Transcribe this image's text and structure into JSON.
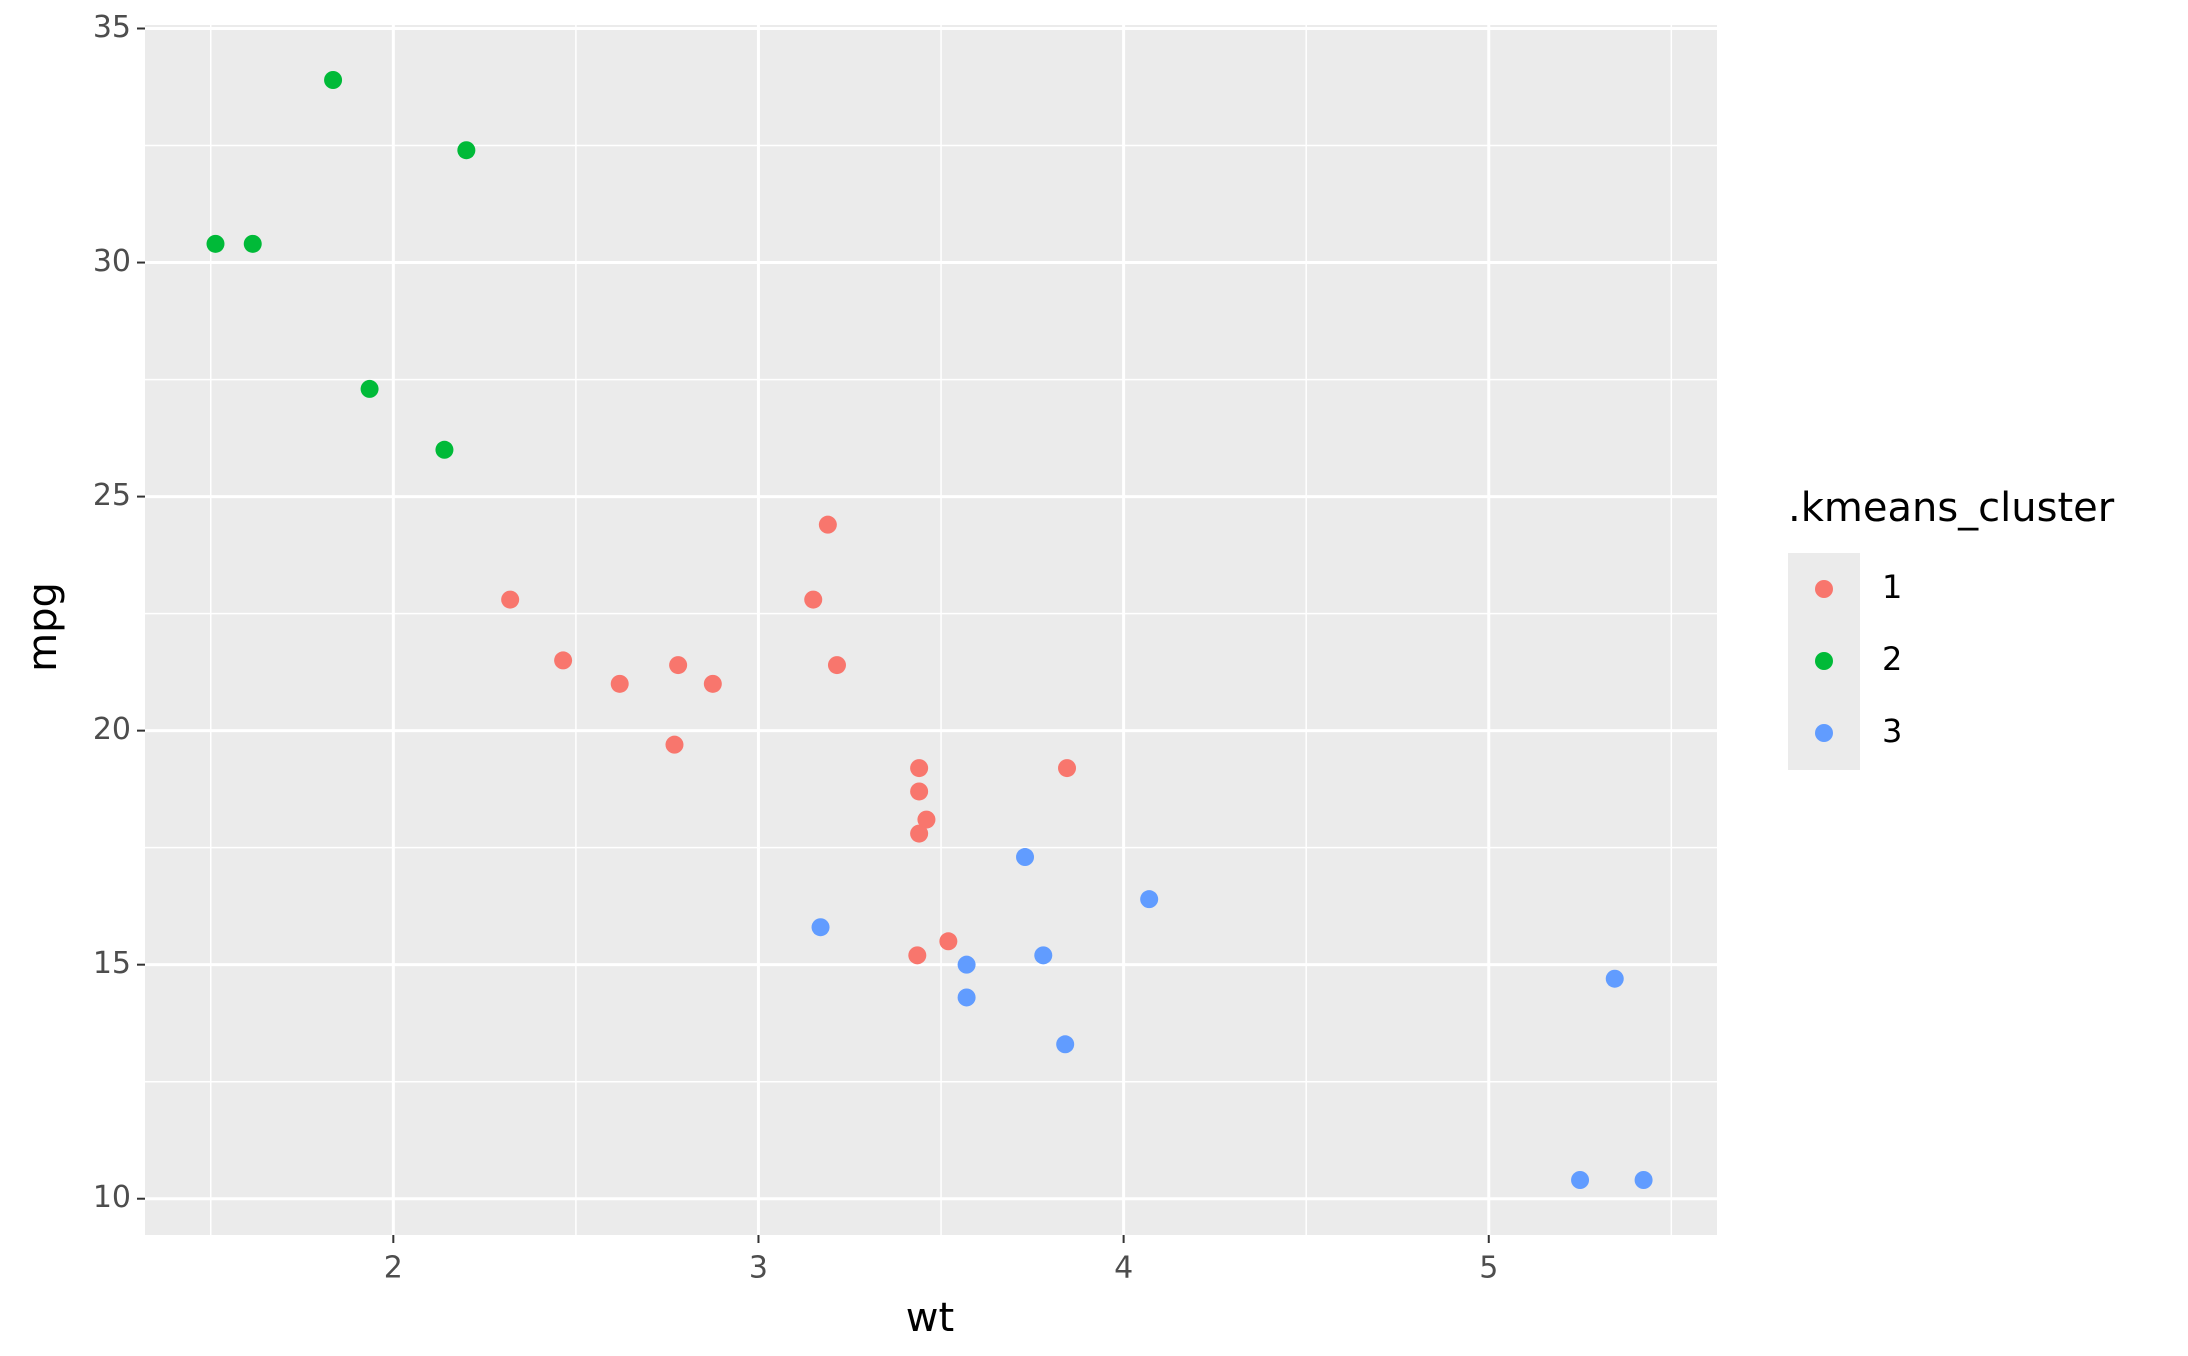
{
  "chart_data": {
    "type": "scatter",
    "x_label": "wt",
    "y_label": "mpg",
    "xlim": [
      1.31995,
      5.62505
    ],
    "ylim": [
      9.225,
      35.075
    ],
    "xticks": [
      2,
      3,
      4,
      5
    ],
    "yticks": [
      10,
      15,
      20,
      25,
      30,
      35
    ],
    "x_minor_ticks": [
      1.5,
      2.5,
      3.5,
      4.5,
      5.5
    ],
    "y_minor_ticks": [
      12.5,
      17.5,
      22.5,
      27.5,
      32.5
    ],
    "grid": true,
    "legend_title": ".kmeans_cluster",
    "legend_position": "right",
    "series": [
      {
        "name": "1",
        "color": "#F8766D",
        "x": [
          2.32,
          2.465,
          2.62,
          2.78,
          2.875,
          2.77,
          3.15,
          3.19,
          3.215,
          3.44,
          3.44,
          3.46,
          3.44,
          3.845,
          3.435,
          3.52
        ],
        "values": [
          22.8,
          21.5,
          21,
          21.4,
          21,
          19.7,
          22.8,
          24.4,
          21.4,
          19.2,
          18.7,
          18.1,
          17.8,
          19.2,
          15.2,
          15.5
        ]
      },
      {
        "name": "2",
        "color": "#00BA38",
        "x": [
          1.835,
          2.2,
          1.513,
          1.615,
          1.935,
          2.14
        ],
        "values": [
          33.9,
          32.4,
          30.4,
          30.4,
          27.3,
          26
        ]
      },
      {
        "name": "3",
        "color": "#619CFF",
        "x": [
          3.17,
          3.57,
          3.57,
          3.73,
          3.78,
          3.84,
          4.07,
          5.25,
          5.424,
          5.345
        ],
        "values": [
          15.8,
          15,
          14.3,
          17.3,
          15.2,
          13.3,
          16.4,
          10.4,
          10.4,
          14.7
        ]
      }
    ]
  }
}
